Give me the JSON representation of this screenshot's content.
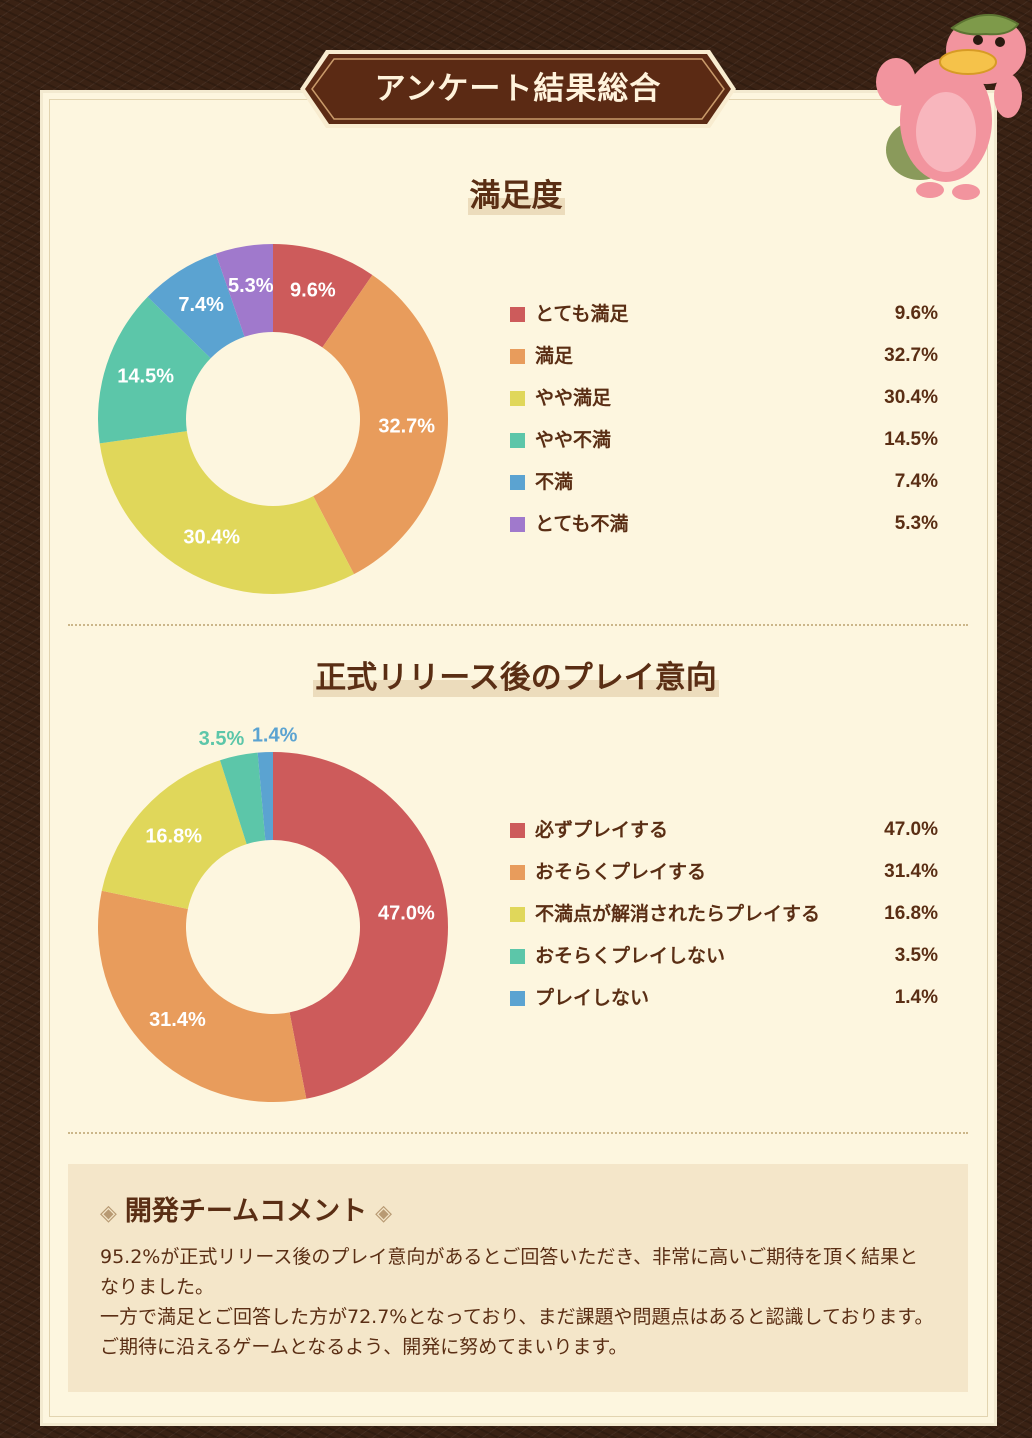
{
  "page": {
    "title": "アンケート結果総合"
  },
  "chart_data": [
    {
      "type": "pie",
      "title": "満足度",
      "categories": [
        "とても満足",
        "満足",
        "やや満足",
        "やや不満",
        "不満",
        "とても不満"
      ],
      "values": [
        9.6,
        32.7,
        30.4,
        14.5,
        7.4,
        5.3
      ],
      "value_labels": [
        "9.6%",
        "32.7%",
        "30.4%",
        "14.5%",
        "7.4%",
        "5.3%"
      ],
      "colors": [
        "#cd5b5b",
        "#e89c5c",
        "#e0d75a",
        "#5cc6a9",
        "#5ba3d1",
        "#a079cc"
      ],
      "legend_position": "right"
    },
    {
      "type": "pie",
      "title": "正式リリース後のプレイ意向",
      "categories": [
        "必ずプレイする",
        "おそらくプレイする",
        "不満点が解消されたらプレイする",
        "おそらくプレイしない",
        "プレイしない"
      ],
      "values": [
        47.0,
        31.4,
        16.8,
        3.5,
        1.4
      ],
      "value_labels": [
        "47.0%",
        "31.4%",
        "16.8%",
        "3.5%",
        "1.4%"
      ],
      "colors": [
        "#cd5b5b",
        "#e89c5c",
        "#e0d75a",
        "#5cc6a9",
        "#5ba3d1"
      ],
      "legend_position": "right"
    }
  ],
  "comment": {
    "title": "開発チームコメント",
    "ornament": "◈",
    "paragraph1": "95.2%が正式リリース後のプレイ意向があるとご回答いただき、非常に高いご期待を頂く結果となりました。",
    "paragraph2": "一方で満足とご回答した方が72.7%となっており、まだ課題や問題点はあると認識しております。ご期待に沿えるゲームとなるよう、開発に努めてまいります。"
  },
  "mascot": {
    "icon": "pink-platypus-mascot-icon"
  }
}
